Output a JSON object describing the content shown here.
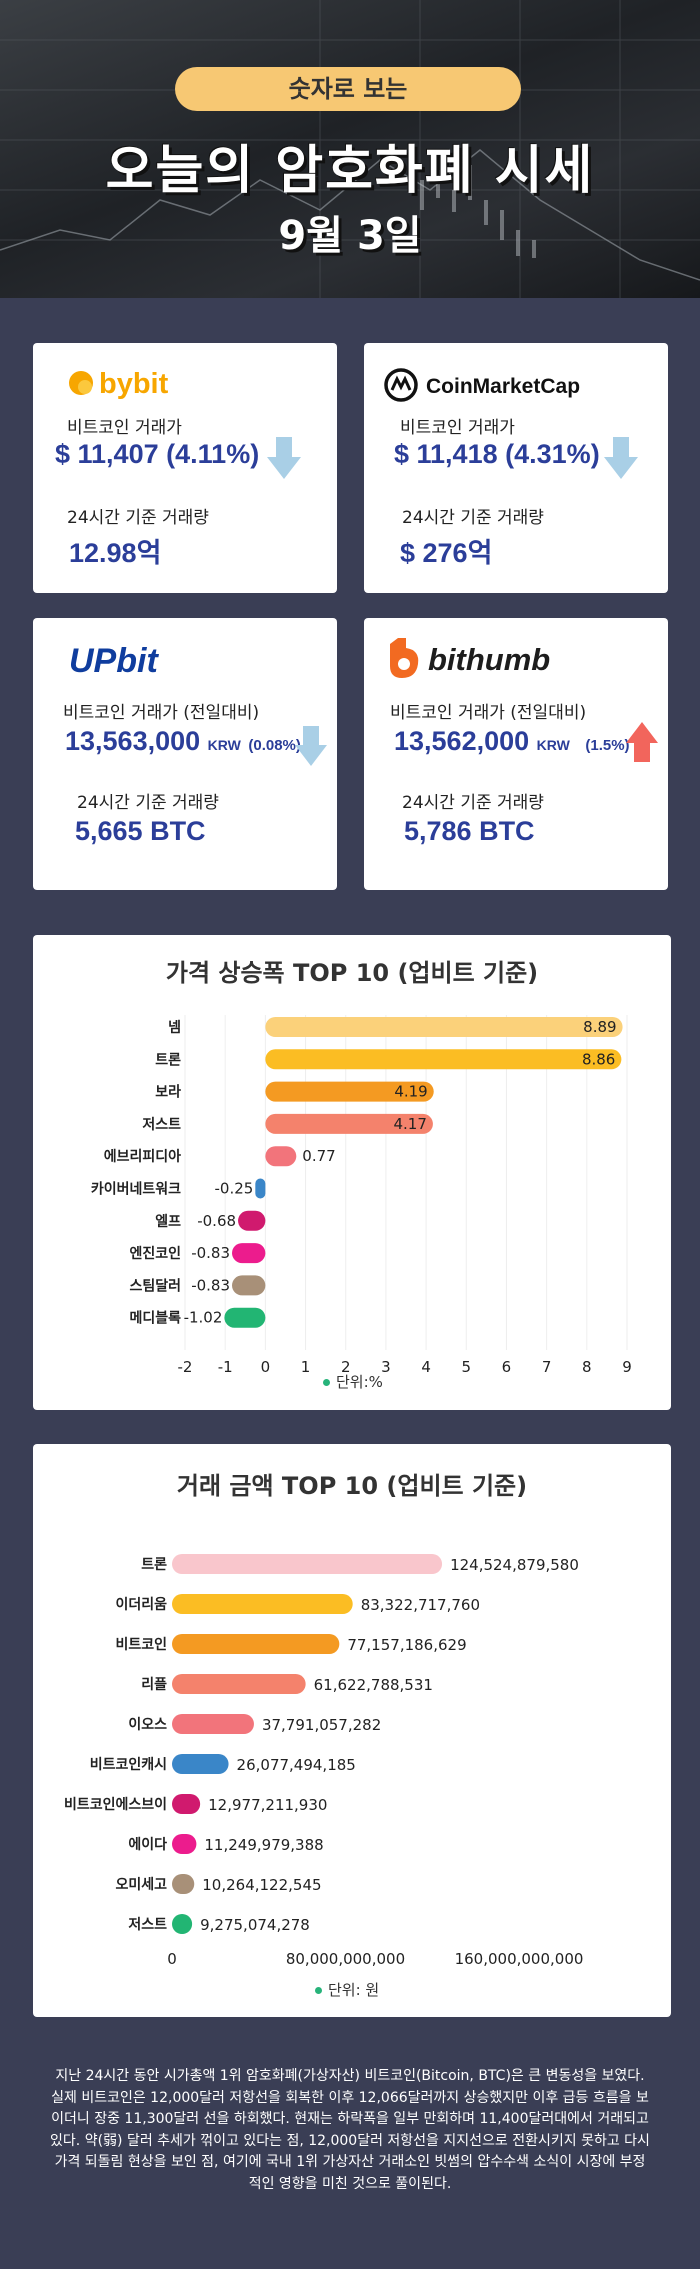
{
  "header": {
    "pill": "숫자로 보는",
    "title": "오늘의 암호화폐 시세",
    "date": "9월 3일"
  },
  "exchanges": {
    "bybit": {
      "logo": "bybit",
      "price_label": "비트코인 거래가",
      "price": "$ 11,407",
      "change": "(4.11%)",
      "direction": "down",
      "volume_label": "24시간 기준 거래량",
      "volume": "12.98억"
    },
    "coinmarketcap": {
      "logo": "CoinMarketCap",
      "price_label": "비트코인 거래가",
      "price": "$ 11,418",
      "change": "(4.31%)",
      "direction": "down",
      "volume_label": "24시간 기준 거래량",
      "volume": "$ 276억"
    },
    "upbit": {
      "logo": "UPbit",
      "price_label": "비트코인 거래가 (전일대비)",
      "price": "13,563,000",
      "unit": "KRW",
      "change": "(0.08%)",
      "direction": "down",
      "volume_label": "24시간 기준 거래량",
      "volume": "5,665 BTC"
    },
    "bithumb": {
      "logo": "bithumb",
      "price_label": "비트코인 거래가 (전일대비)",
      "price": "13,562,000",
      "unit": "KRW",
      "change": "(1.5%)",
      "direction": "up",
      "volume_label": "24시간 기준 거래량",
      "volume": "5,786 BTC"
    }
  },
  "colors": {
    "down_arrow": "#a9cfe6",
    "up_arrow": "#f2655c",
    "price_blue": "#2b3e99",
    "background": "#3a3e55"
  },
  "chart_data": [
    {
      "type": "bar",
      "orientation": "horizontal",
      "title": "가격 상승폭 TOP 10 (업비트 기준)",
      "categories": [
        "넴",
        "트론",
        "보라",
        "저스트",
        "에브리피디아",
        "카이버네트워크",
        "엘프",
        "엔진코인",
        "스팀달러",
        "메디블록"
      ],
      "values": [
        8.89,
        8.86,
        4.19,
        4.17,
        0.77,
        -0.25,
        -0.68,
        -0.83,
        -0.83,
        -1.02
      ],
      "value_labels": [
        "8.89",
        "8.86",
        "4.19",
        "4.17",
        "0.77",
        "-0.25",
        "-0.68",
        "-0.83",
        "-0.83",
        "-1.02"
      ],
      "colors": [
        "#fbd17a",
        "#fbbd23",
        "#f49a22",
        "#f4826c",
        "#f2747b",
        "#3a86c8",
        "#d01a6e",
        "#ec1c8d",
        "#a89078",
        "#22b573"
      ],
      "xlim": [
        -2,
        9
      ],
      "xticks": [
        "-2",
        "-1",
        "0",
        "1",
        "2",
        "3",
        "4",
        "5",
        "6",
        "7",
        "8",
        "9"
      ],
      "grid": true,
      "legend": "단위:%"
    },
    {
      "type": "bar",
      "orientation": "horizontal",
      "title": "거래 금액 TOP 10 (업비트 기준)",
      "categories": [
        "트론",
        "이더리움",
        "비트코인",
        "리플",
        "이오스",
        "비트코인캐시",
        "비트코인에스브이",
        "에이다",
        "오미세고",
        "저스트"
      ],
      "values": [
        124524879580,
        83322717760,
        77157186629,
        61622788531,
        37791057282,
        26077494185,
        12977211930,
        11249979388,
        10264122545,
        9275074278
      ],
      "value_labels": [
        "124,524,879,580",
        "83,322,717,760",
        "77,157,186,629",
        "61,622,788,531",
        "37,791,057,282",
        "26,077,494,185",
        "12,977,211,930",
        "11,249,979,388",
        "10,264,122,545",
        "9,275,074,278"
      ],
      "colors": [
        "#f9c6cc",
        "#fbbd23",
        "#f49a22",
        "#f4826c",
        "#f2747b",
        "#3a86c8",
        "#d01a6e",
        "#ec1c8d",
        "#a89078",
        "#22b573"
      ],
      "xlim": [
        0,
        160000000000
      ],
      "xticks": [
        "0",
        "80,000,000,000",
        "160,000,000,000"
      ],
      "legend": "단위: 원"
    }
  ],
  "footer": {
    "text": "지난 24시간 동안 시가총액 1위 암호화폐(가상자산) 비트코인(Bitcoin, BTC)은 큰 변동성을 보였다. 실제 비트코인은 12,000달러 저항선을 회복한 이후 12,066달러까지 상승했지만 이후 급등 흐름을 보이더니 장중 11,300달러 선을 하회했다. 현재는 하락폭을 일부 만회하며 11,400달러대에서 거래되고 있다. 약(弱) 달러 추세가 꺾이고 있다는 점, 12,000달러 저항선을 지지선으로 전환시키지 못하고 다시 가격 되돌림 현상을 보인 점, 여기에 국내 1위 가상자산 거래소인 빗썸의 압수수색 소식이 시장에 부정적인 영향을 미친 것으로 풀이된다."
  }
}
